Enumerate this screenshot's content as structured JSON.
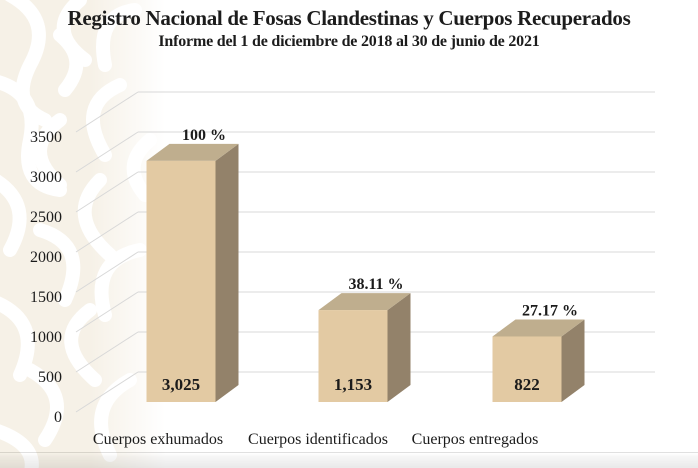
{
  "slide": {
    "title": "Registro Nacional de Fosas Clandestinas y Cuerpos Recuperados",
    "subtitle": "Informe del 1 de diciembre de 2018 al 30 de junio de 2021"
  },
  "chart_data": {
    "type": "bar",
    "style": "3d-column",
    "categories": [
      "Cuerpos exhumados",
      "Cuerpos identificados",
      "Cuerpos entregados"
    ],
    "values": [
      3025,
      1153,
      822
    ],
    "value_labels": [
      "3,025",
      "1,153",
      "822"
    ],
    "percents": [
      100,
      38.11,
      27.17
    ],
    "percent_labels": [
      "100 %",
      "38.11 %",
      "27.17 %"
    ],
    "title": "",
    "xlabel": "",
    "ylabel": "",
    "ylim": [
      0,
      3500
    ],
    "ytick_step": 500,
    "ytick_labels": [
      "0",
      "500",
      "1000",
      "1500",
      "2000",
      "2500",
      "3000",
      "3500"
    ],
    "grid": true,
    "legend": "none",
    "colors": {
      "bar_front": "#e3caa3",
      "bar_top": "#bfae8e",
      "bar_side": "#93826a",
      "gridline": "#d8d8d8",
      "text": "#1b1b1b",
      "watermark_base": "#f6f1e7",
      "watermark_motif": "#ffffff"
    }
  }
}
